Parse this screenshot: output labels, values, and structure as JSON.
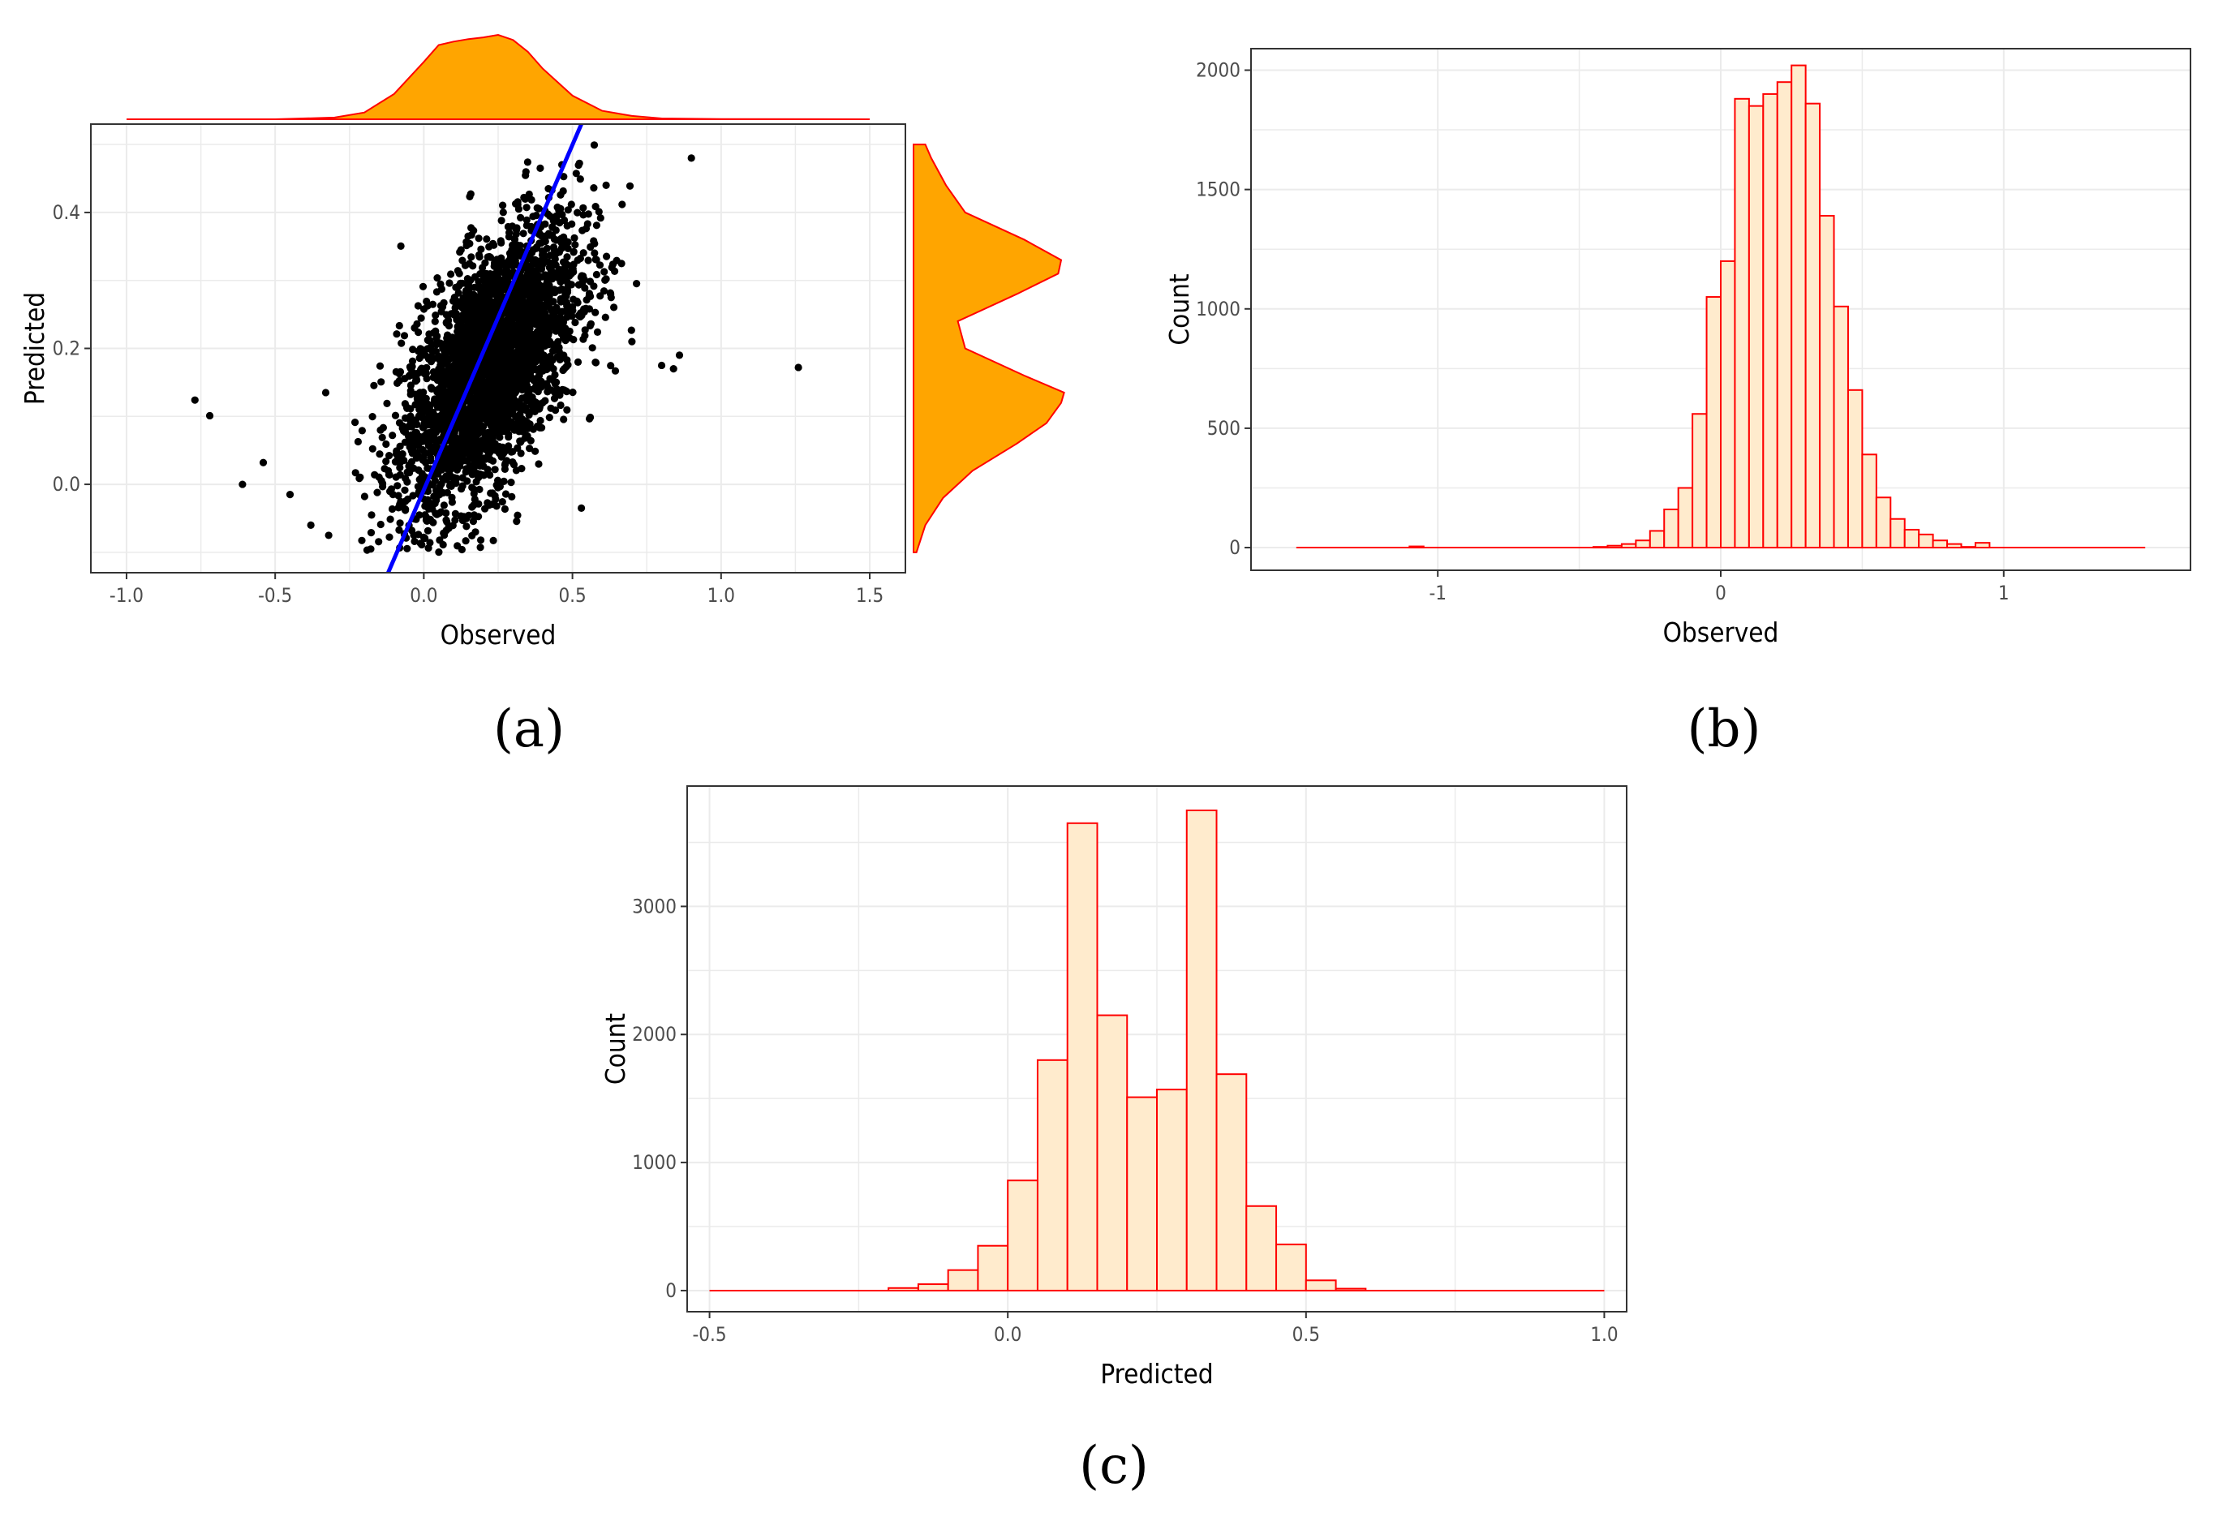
{
  "panel_labels": {
    "a": "(a)",
    "b": "(b)",
    "c": "(c)"
  },
  "colors": {
    "points": "#000000",
    "fit_line": "#0000ff",
    "density_fill": "#ffa500",
    "density_stroke": "#ff0000",
    "bar_fill": "#ffebcd",
    "bar_stroke": "#ff0000"
  },
  "chart_data": [
    {
      "id": "a",
      "type": "scatter",
      "xlabel": "Observed",
      "ylabel": "Predicted",
      "xlim": [
        -1.12,
        1.62
      ],
      "ylim": [
        -0.13,
        0.53
      ],
      "xticks": [
        -1.0,
        -0.5,
        0.0,
        0.5,
        1.0,
        1.5
      ],
      "xtick_labels": [
        "-1.0",
        "-0.5",
        "0.0",
        "0.5",
        "1.0",
        "1.5"
      ],
      "yticks": [
        0.0,
        0.2,
        0.4
      ],
      "ytick_labels": [
        "0.0",
        "0.2",
        "0.4"
      ],
      "grid": true,
      "fit_line": {
        "x": [
          -0.12,
          0.53
        ],
        "y": [
          -0.13,
          0.53
        ]
      },
      "cloud": {
        "n": 3200,
        "x_mean": 0.22,
        "x_sd": 0.15,
        "slope": 0.42,
        "intercept": 0.08,
        "noise_sd": 0.085,
        "y_min": -0.1,
        "y_max": 0.5
      },
      "outliers": [
        {
          "x": -0.77,
          "y": 0.124
        },
        {
          "x": -0.72,
          "y": 0.101
        },
        {
          "x": -0.61,
          "y": 0.0
        },
        {
          "x": -0.54,
          "y": 0.032
        },
        {
          "x": -0.45,
          "y": -0.015
        },
        {
          "x": -0.38,
          "y": -0.06
        },
        {
          "x": -0.33,
          "y": 0.135
        },
        {
          "x": -0.32,
          "y": -0.075
        },
        {
          "x": 0.53,
          "y": -0.035
        },
        {
          "x": 0.7,
          "y": 0.21
        },
        {
          "x": 0.8,
          "y": 0.175
        },
        {
          "x": 0.84,
          "y": 0.17
        },
        {
          "x": 0.86,
          "y": 0.19
        },
        {
          "x": 0.9,
          "y": 0.48
        },
        {
          "x": 1.26,
          "y": 0.172
        }
      ],
      "marginal_x_density": {
        "x": [
          -1.0,
          -0.5,
          -0.3,
          -0.2,
          -0.1,
          0.0,
          0.05,
          0.1,
          0.15,
          0.2,
          0.25,
          0.3,
          0.35,
          0.4,
          0.5,
          0.6,
          0.7,
          0.8,
          1.0,
          1.5
        ],
        "density": [
          0.0,
          0.0,
          0.02,
          0.08,
          0.3,
          0.68,
          0.88,
          0.92,
          0.95,
          0.97,
          1.0,
          0.94,
          0.8,
          0.6,
          0.28,
          0.1,
          0.04,
          0.01,
          0.003,
          0.0
        ]
      },
      "marginal_y_density": {
        "y": [
          -0.1,
          -0.06,
          -0.02,
          0.02,
          0.06,
          0.09,
          0.12,
          0.135,
          0.16,
          0.2,
          0.24,
          0.28,
          0.31,
          0.33,
          0.36,
          0.4,
          0.44,
          0.48,
          0.5
        ],
        "density": [
          0.02,
          0.08,
          0.2,
          0.4,
          0.7,
          0.9,
          1.0,
          1.02,
          0.75,
          0.35,
          0.3,
          0.7,
          0.98,
          1.0,
          0.75,
          0.35,
          0.22,
          0.12,
          0.08
        ]
      }
    },
    {
      "id": "b",
      "type": "bar",
      "xlabel": "Observed",
      "ylabel": "Count",
      "xlim": [
        -1.66,
        1.66
      ],
      "ylim": [
        -95,
        2090
      ],
      "xticks": [
        -1,
        0,
        1
      ],
      "xtick_labels": [
        "-1",
        "0",
        "1"
      ],
      "yticks": [
        0,
        500,
        1000,
        1500,
        2000
      ],
      "ytick_labels": [
        "0",
        "500",
        "1000",
        "1500",
        "2000"
      ],
      "grid": true,
      "bin_width": 0.05,
      "baseline_range": [
        -1.5,
        1.5
      ],
      "bins_start": [
        -1.1,
        -0.45,
        -0.4,
        -0.35,
        -0.3,
        -0.25,
        -0.2,
        -0.15,
        -0.1,
        -0.05,
        0.0,
        0.05,
        0.1,
        0.15,
        0.2,
        0.25,
        0.3,
        0.35,
        0.4,
        0.45,
        0.5,
        0.55,
        0.6,
        0.65,
        0.7,
        0.75,
        0.8,
        0.85,
        0.9
      ],
      "values": [
        5,
        3,
        8,
        15,
        30,
        70,
        160,
        250,
        560,
        1050,
        1200,
        1880,
        1850,
        1900,
        1950,
        2020,
        1860,
        1390,
        1010,
        660,
        390,
        210,
        120,
        75,
        55,
        30,
        15,
        3,
        20
      ]
    },
    {
      "id": "c",
      "type": "bar",
      "xlabel": "Predicted",
      "ylabel": "Count",
      "xlim": [
        -0.5375,
        1.0375
      ],
      "ylim": [
        -165,
        3940
      ],
      "xticks": [
        -0.5,
        0.0,
        0.5,
        1.0
      ],
      "xtick_labels": [
        "-0.5",
        "0.0",
        "0.5",
        "1.0"
      ],
      "yticks": [
        0,
        1000,
        2000,
        3000
      ],
      "ytick_labels": [
        "0",
        "1000",
        "2000",
        "3000"
      ],
      "grid": true,
      "bin_width": 0.05,
      "baseline_range": [
        -0.5,
        1.0
      ],
      "bins_start": [
        -0.2,
        -0.15,
        -0.1,
        -0.05,
        0.0,
        0.05,
        0.1,
        0.15,
        0.2,
        0.25,
        0.3,
        0.35,
        0.4,
        0.45,
        0.5,
        0.55
      ],
      "values": [
        20,
        50,
        160,
        350,
        860,
        1800,
        3650,
        2150,
        1510,
        1570,
        3750,
        1690,
        660,
        360,
        80,
        15
      ]
    }
  ]
}
